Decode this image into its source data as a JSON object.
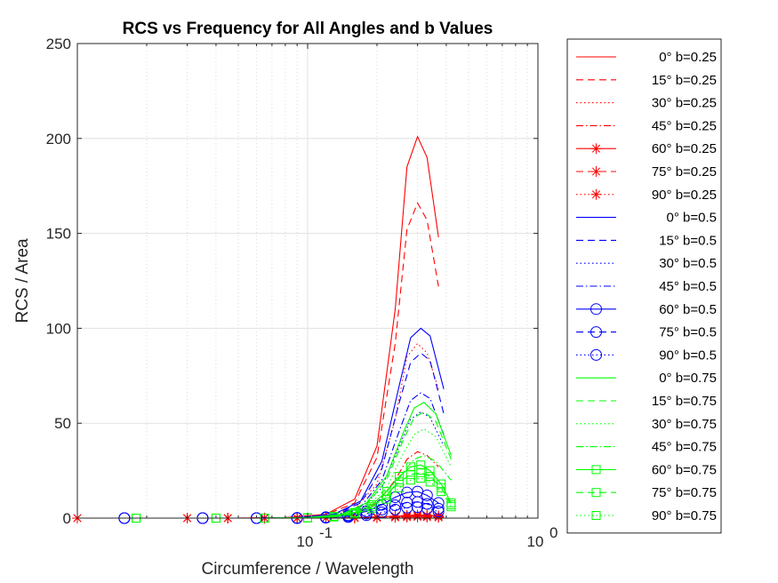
{
  "chart_data": {
    "type": "line",
    "title": "RCS vs Frequency for All Angles and b Values",
    "xlabel": "Circumference / Wavelength",
    "ylabel": "RCS / Area",
    "xscale": "log",
    "xlim": [
      0.01,
      1
    ],
    "ylim": [
      0,
      250
    ],
    "grid": true,
    "legend_position": "outside-right",
    "x_ticks": [
      {
        "value": 0.1,
        "base": "10",
        "exp": "-1"
      },
      {
        "value": 1,
        "base": "10",
        "exp": "0"
      }
    ],
    "y_ticks": [
      0,
      50,
      100,
      150,
      200,
      250
    ],
    "series": [
      {
        "name": "0° b=0.25",
        "color": "#ff0000",
        "dash": "solid",
        "marker": "none",
        "x": [
          0.014,
          0.03,
          0.05,
          0.08,
          0.12,
          0.16,
          0.2,
          0.24,
          0.27,
          0.3,
          0.33,
          0.37
        ],
        "values": [
          0,
          0,
          0,
          0.3,
          2,
          10,
          38,
          110,
          185,
          201,
          190,
          148
        ]
      },
      {
        "name": "15° b=0.25",
        "color": "#ff0000",
        "dash": "dashed",
        "marker": "none",
        "x": [
          0.014,
          0.03,
          0.05,
          0.08,
          0.12,
          0.16,
          0.2,
          0.24,
          0.27,
          0.3,
          0.33,
          0.37
        ],
        "values": [
          0,
          0,
          0,
          0.3,
          1.8,
          8,
          32,
          92,
          152,
          166,
          157,
          122
        ]
      },
      {
        "name": "30° b=0.25",
        "color": "#ff0000",
        "dash": "dotted",
        "marker": "none",
        "x": [
          0.014,
          0.03,
          0.05,
          0.08,
          0.12,
          0.16,
          0.2,
          0.24,
          0.27,
          0.3,
          0.33,
          0.37
        ],
        "values": [
          0,
          0,
          0,
          0.2,
          1.2,
          5,
          18,
          52,
          85,
          92,
          87,
          68
        ]
      },
      {
        "name": "45° b=0.25",
        "color": "#ff0000",
        "dash": "dashdot",
        "marker": "none",
        "x": [
          0.014,
          0.03,
          0.05,
          0.08,
          0.12,
          0.16,
          0.2,
          0.24,
          0.27,
          0.3,
          0.33,
          0.37
        ],
        "values": [
          0,
          0,
          0,
          0.1,
          0.6,
          2.5,
          8,
          20,
          31,
          35,
          33,
          27
        ]
      },
      {
        "name": "60° b=0.25",
        "color": "#ff0000",
        "dash": "solid",
        "marker": "asterisk",
        "x": [
          0.01,
          0.03,
          0.045,
          0.065,
          0.09,
          0.12,
          0.16,
          0.2,
          0.24,
          0.27,
          0.3,
          0.33,
          0.37
        ],
        "values": [
          0,
          0,
          0,
          0,
          0,
          0.1,
          0.3,
          0.6,
          1.0,
          1.4,
          1.6,
          1.5,
          1.2
        ]
      },
      {
        "name": "75° b=0.25",
        "color": "#ff0000",
        "dash": "dashed",
        "marker": "asterisk",
        "x": [
          0.01,
          0.03,
          0.045,
          0.065,
          0.09,
          0.12,
          0.16,
          0.2,
          0.24,
          0.27,
          0.3,
          0.33,
          0.37
        ],
        "values": [
          0,
          0,
          0,
          0,
          0,
          0.05,
          0.2,
          0.4,
          0.7,
          1.0,
          1.1,
          1.0,
          0.8
        ]
      },
      {
        "name": "90° b=0.25",
        "color": "#ff0000",
        "dash": "dotted",
        "marker": "asterisk",
        "x": [
          0.01,
          0.03,
          0.045,
          0.065,
          0.09,
          0.12,
          0.16,
          0.2,
          0.24,
          0.27,
          0.3,
          0.33,
          0.37
        ],
        "values": [
          0,
          0,
          0,
          0,
          0,
          0,
          0.1,
          0.2,
          0.4,
          0.5,
          0.6,
          0.5,
          0.4
        ]
      },
      {
        "name": "0° b=0.5",
        "color": "#0000ff",
        "dash": "solid",
        "marker": "none",
        "x": [
          0.016,
          0.035,
          0.06,
          0.09,
          0.13,
          0.17,
          0.21,
          0.25,
          0.28,
          0.31,
          0.34,
          0.39
        ],
        "values": [
          0,
          0,
          0,
          0.3,
          2,
          9,
          30,
          70,
          95,
          100,
          96,
          68
        ]
      },
      {
        "name": "15° b=0.5",
        "color": "#0000ff",
        "dash": "dashed",
        "marker": "none",
        "x": [
          0.016,
          0.035,
          0.06,
          0.09,
          0.13,
          0.17,
          0.21,
          0.25,
          0.28,
          0.31,
          0.34,
          0.39
        ],
        "values": [
          0,
          0,
          0,
          0.3,
          1.8,
          8,
          26,
          61,
          82,
          87,
          83,
          55
        ]
      },
      {
        "name": "30° b=0.5",
        "color": "#0000ff",
        "dash": "dotted",
        "marker": "none",
        "x": [
          0.016,
          0.035,
          0.06,
          0.09,
          0.13,
          0.17,
          0.21,
          0.25,
          0.28,
          0.31,
          0.34,
          0.39
        ],
        "values": [
          0,
          0,
          0,
          0.2,
          1.2,
          5,
          16,
          38,
          52,
          56,
          53,
          38
        ]
      },
      {
        "name": "45° b=0.5",
        "color": "#0000ff",
        "dash": "dashdot",
        "marker": "none",
        "x": [
          0.016,
          0.035,
          0.06,
          0.09,
          0.13,
          0.17,
          0.21,
          0.25,
          0.28,
          0.31,
          0.34,
          0.39
        ],
        "values": [
          0,
          0,
          0,
          0.2,
          1.4,
          6,
          20,
          46,
          62,
          66,
          63,
          44
        ]
      },
      {
        "name": "60° b=0.5",
        "color": "#0000ff",
        "dash": "solid",
        "marker": "circle",
        "x": [
          0.016,
          0.035,
          0.06,
          0.09,
          0.12,
          0.15,
          0.18,
          0.21,
          0.24,
          0.27,
          0.3,
          0.33,
          0.37
        ],
        "values": [
          0,
          0,
          0,
          0.1,
          0.5,
          1.5,
          3.5,
          7,
          11,
          13.5,
          14,
          12,
          8
        ]
      },
      {
        "name": "75° b=0.5",
        "color": "#0000ff",
        "dash": "dashed",
        "marker": "circle",
        "x": [
          0.016,
          0.035,
          0.06,
          0.09,
          0.12,
          0.15,
          0.18,
          0.21,
          0.24,
          0.27,
          0.3,
          0.33,
          0.37
        ],
        "values": [
          0,
          0,
          0,
          0.1,
          0.3,
          1.0,
          2.3,
          4.5,
          6.8,
          8.2,
          8.5,
          7.5,
          5
        ]
      },
      {
        "name": "90° b=0.5",
        "color": "#0000ff",
        "dash": "dotted",
        "marker": "circle",
        "x": [
          0.016,
          0.035,
          0.06,
          0.09,
          0.12,
          0.15,
          0.18,
          0.21,
          0.24,
          0.27,
          0.3,
          0.33,
          0.37
        ],
        "values": [
          0,
          0,
          0,
          0,
          0.2,
          0.6,
          1.5,
          3,
          4.5,
          5.5,
          5.8,
          5,
          3.5
        ]
      },
      {
        "name": "0° b=0.75",
        "color": "#00ff00",
        "dash": "solid",
        "marker": "none",
        "x": [
          0.018,
          0.04,
          0.065,
          0.1,
          0.14,
          0.18,
          0.22,
          0.26,
          0.29,
          0.32,
          0.36,
          0.42
        ],
        "values": [
          0,
          0,
          0,
          0.3,
          2,
          8,
          22,
          45,
          58,
          61,
          55,
          33
        ]
      },
      {
        "name": "15° b=0.75",
        "color": "#00ff00",
        "dash": "dashed",
        "marker": "none",
        "x": [
          0.018,
          0.04,
          0.065,
          0.1,
          0.14,
          0.18,
          0.22,
          0.26,
          0.29,
          0.32,
          0.36,
          0.42
        ],
        "values": [
          0,
          0,
          0,
          0.3,
          1.8,
          7,
          20,
          41,
          53,
          56,
          51,
          31
        ]
      },
      {
        "name": "30° b=0.75",
        "color": "#00ff00",
        "dash": "dotted",
        "marker": "none",
        "x": [
          0.018,
          0.04,
          0.065,
          0.1,
          0.14,
          0.18,
          0.22,
          0.26,
          0.29,
          0.32,
          0.36,
          0.42
        ],
        "values": [
          0,
          0,
          0,
          0.2,
          1.4,
          5.5,
          16,
          34,
          44,
          47,
          43,
          27
        ]
      },
      {
        "name": "45° b=0.75",
        "color": "#00ff00",
        "dash": "dashdot",
        "marker": "none",
        "x": [
          0.018,
          0.04,
          0.065,
          0.1,
          0.14,
          0.18,
          0.22,
          0.26,
          0.29,
          0.32,
          0.36,
          0.42
        ],
        "values": [
          0,
          0,
          0,
          0.2,
          1.0,
          4,
          11,
          24,
          31,
          33,
          30,
          20
        ]
      },
      {
        "name": "60° b=0.75",
        "color": "#00ff00",
        "dash": "solid",
        "marker": "square",
        "x": [
          0.018,
          0.04,
          0.065,
          0.1,
          0.13,
          0.16,
          0.19,
          0.22,
          0.25,
          0.28,
          0.31,
          0.34,
          0.38,
          0.42
        ],
        "values": [
          0,
          0,
          0,
          0.2,
          1,
          3,
          7,
          14,
          22,
          27,
          28,
          25,
          18,
          8
        ]
      },
      {
        "name": "75° b=0.75",
        "color": "#00ff00",
        "dash": "dashed",
        "marker": "square",
        "x": [
          0.018,
          0.04,
          0.065,
          0.1,
          0.13,
          0.16,
          0.19,
          0.22,
          0.25,
          0.28,
          0.31,
          0.34,
          0.38,
          0.42
        ],
        "values": [
          0,
          0,
          0,
          0.2,
          0.8,
          2.5,
          6,
          12,
          19,
          23,
          24,
          22,
          16,
          7
        ]
      },
      {
        "name": "90° b=0.75",
        "color": "#00ff00",
        "dash": "dotted",
        "marker": "square",
        "x": [
          0.018,
          0.04,
          0.065,
          0.1,
          0.13,
          0.16,
          0.19,
          0.22,
          0.25,
          0.28,
          0.31,
          0.34,
          0.38,
          0.42
        ],
        "values": [
          0,
          0,
          0,
          0.1,
          0.6,
          2,
          5,
          10,
          16,
          20,
          21,
          19,
          14,
          6
        ]
      }
    ]
  }
}
